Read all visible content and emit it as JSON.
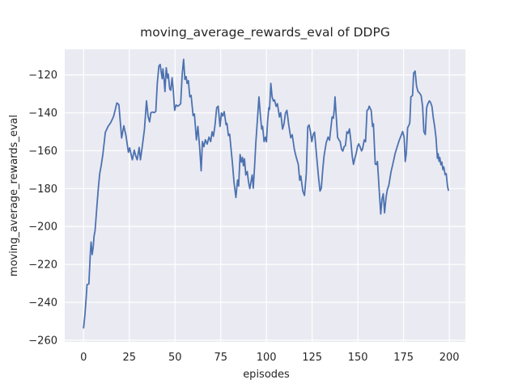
{
  "colors": {
    "line": "#4c72b0",
    "plot_background": "#eaeaf2",
    "grid": "#ffffff",
    "text": "#262626",
    "figure_background": "#ffffff"
  },
  "chart_data": {
    "type": "line",
    "title": "moving_average_rewards_eval of DDPG",
    "xlabel": "episodes",
    "ylabel": "moving_average_rewards_eval",
    "x_ticks": [
      0,
      25,
      50,
      75,
      100,
      125,
      150,
      175,
      200
    ],
    "x_tick_labels": [
      "0",
      "25",
      "50",
      "75",
      "100",
      "125",
      "150",
      "175",
      "200"
    ],
    "y_ticks": [
      -120,
      -140,
      -160,
      -180,
      -200,
      -220,
      -240,
      -260
    ],
    "y_tick_labels": [
      "−120",
      "−140",
      "−160",
      "−180",
      "−200",
      "−220",
      "−240",
      "−260"
    ],
    "xlim": [
      -10.3,
      208.8
    ],
    "ylim": [
      -260.9,
      -106.5
    ],
    "grid": true,
    "legend": false,
    "series": [
      {
        "name": "moving_average_rewards_eval",
        "color": "#4c72b0",
        "x": [
          0,
          0.7,
          1.4,
          1.9,
          2.9,
          3.3,
          3.7,
          4.1,
          4.7,
          5.3,
          5.7,
          6.3,
          7,
          8,
          8.8,
          9.6,
          10.6,
          11.9,
          13.4,
          14.9,
          16.4,
          17.3,
          18.2,
          19.3,
          20.1,
          20.8,
          22,
          23.2,
          24.5,
          25.2,
          26,
          26.7,
          27.7,
          28.6,
          29.3,
          30.4,
          31.1,
          32.2,
          33.3,
          34.4,
          35.3,
          36.1,
          36.8,
          37.7,
          38.8,
          39.5,
          40.3,
          41.2,
          41.9,
          42.5,
          43,
          43.4,
          44,
          44.5,
          45.2,
          45.9,
          46.3,
          47.1,
          47.7,
          48.4,
          49.1,
          49.8,
          50.6,
          51.6,
          52.5,
          53.1,
          53.9,
          54.7,
          55.4,
          56.1,
          56.6,
          57.3,
          58.1,
          58.8,
          59.9,
          60.6,
          61.7,
          62.5,
          63.5,
          64.3,
          65,
          65.8,
          66.6,
          67.6,
          68.6,
          69.5,
          70.3,
          71,
          71.8,
          72.8,
          73.6,
          74.6,
          75.4,
          76.1,
          76.9,
          77.9,
          78.4,
          79.2,
          79.9,
          80.6,
          81.4,
          82.2,
          83.3,
          84.2,
          84.8,
          85.6,
          86.3,
          86.9,
          87.4,
          88,
          88.7,
          89.5,
          90.2,
          90.9,
          91.7,
          92.2,
          92.8,
          93.5,
          94.2,
          95,
          95.9,
          96.7,
          97.4,
          97.9,
          98.7,
          99.4,
          100,
          100.6,
          101.3,
          101.7,
          102.4,
          103.1,
          103.8,
          104.4,
          105.3,
          106,
          107.1,
          107.8,
          108.8,
          109.6,
          110.4,
          111.2,
          112.2,
          113.3,
          114.1,
          115.3,
          116.3,
          117.4,
          118.2,
          118.8,
          119.9,
          120.8,
          121.8,
          122.6,
          123.3,
          124.1,
          124.8,
          125.6,
          126.3,
          127.7,
          128.5,
          129.3,
          130,
          130.8,
          131.5,
          132.7,
          133.7,
          134.5,
          135.9,
          136.6,
          137.1,
          137.5,
          138.2,
          138.9,
          139.6,
          140.3,
          141.1,
          141.8,
          142.5,
          143.2,
          144,
          144.7,
          145.4,
          146.1,
          146.9,
          147.6,
          148.3,
          149.1,
          149.8,
          150.5,
          151.2,
          152,
          152.5,
          153.5,
          154.2,
          155,
          155.7,
          156.2,
          157.3,
          158,
          158.5,
          159.5,
          160.2,
          160.7,
          161.7,
          162.5,
          163.2,
          163.9,
          164.6,
          165.4,
          166.1,
          166.9,
          168.1,
          169.1,
          170.4,
          171.5,
          172.7,
          173.9,
          174.5,
          175.3,
          175.9,
          176.5,
          177.2,
          178,
          178.4,
          179,
          179.9,
          180.5,
          181.3,
          182.1,
          182.9,
          183.6,
          184.6,
          185.4,
          186.1,
          186.9,
          187.6,
          188.3,
          189.1,
          189.8,
          190.5,
          191.3,
          192,
          192.7,
          193.5,
          193.9,
          194.4,
          194.8,
          195.4,
          195.9,
          196.5,
          197,
          197.7,
          198.3,
          199,
          199.5
        ],
        "y": [
          -253.5,
          -247,
          -238,
          -230.6,
          -230.3,
          -222,
          -214,
          -208.2,
          -214.8,
          -210.5,
          -205.3,
          -202,
          -193,
          -180.5,
          -172.3,
          -168,
          -161.5,
          -150.3,
          -147.2,
          -145.1,
          -141.9,
          -138.5,
          -134.8,
          -135.7,
          -145,
          -153.3,
          -146.8,
          -152.2,
          -160.8,
          -158.5,
          -162,
          -164.8,
          -159.7,
          -163,
          -164.8,
          -158.3,
          -164.8,
          -157,
          -148.6,
          -133.7,
          -142,
          -144.8,
          -140,
          -139.6,
          -139.9,
          -139.2,
          -124.5,
          -115.3,
          -114.5,
          -118.9,
          -122,
          -116.8,
          -122.4,
          -128.8,
          -116.2,
          -121.7,
          -119.6,
          -127.4,
          -128.1,
          -121.5,
          -128.8,
          -138.7,
          -135.9,
          -136.5,
          -135.8,
          -135.2,
          -120,
          -111.8,
          -122.4,
          -120.9,
          -124.5,
          -123,
          -131.6,
          -130.8,
          -141.5,
          -140.6,
          -154.3,
          -147.2,
          -158.6,
          -170.6,
          -155.2,
          -157.9,
          -154.2,
          -156.5,
          -152.8,
          -155.2,
          -150,
          -152.4,
          -147.2,
          -137.3,
          -136.5,
          -147.2,
          -140.1,
          -141.7,
          -139.4,
          -146.3,
          -145.6,
          -152,
          -151.3,
          -158.6,
          -166.5,
          -176,
          -184.7,
          -175.5,
          -178.6,
          -162,
          -166,
          -163.5,
          -168,
          -164.3,
          -172.8,
          -171,
          -176.5,
          -180,
          -175.6,
          -172.8,
          -179.8,
          -168.5,
          -155.8,
          -144.5,
          -131.6,
          -141.5,
          -148.6,
          -147.1,
          -155.2,
          -152.9,
          -155.3,
          -145,
          -137.3,
          -138.2,
          -124.5,
          -131.6,
          -133.8,
          -133.2,
          -136.6,
          -135.2,
          -142.2,
          -140,
          -148.6,
          -145.8,
          -140.1,
          -138.7,
          -146.5,
          -153.2,
          -151.6,
          -159.5,
          -163.5,
          -167.1,
          -175.6,
          -173.4,
          -181.3,
          -183.6,
          -172,
          -147.5,
          -146.4,
          -150.2,
          -155.2,
          -151.3,
          -150.2,
          -165.7,
          -174.2,
          -181.3,
          -179.8,
          -169.9,
          -162.8,
          -155.7,
          -152.8,
          -154.5,
          -142.2,
          -142.9,
          -138,
          -131.6,
          -142.2,
          -152.9,
          -154.2,
          -155.2,
          -159.3,
          -160.2,
          -157.8,
          -157.3,
          -150,
          -150.8,
          -148.5,
          -154.3,
          -162.8,
          -167.2,
          -164.2,
          -161.4,
          -157.8,
          -156.4,
          -158,
          -160.1,
          -159.3,
          -154.3,
          -155.3,
          -138.8,
          -138.1,
          -136.5,
          -138.8,
          -147.2,
          -145.8,
          -167.1,
          -167.3,
          -165.7,
          -181.3,
          -193.4,
          -185.5,
          -182.7,
          -192.8,
          -184.8,
          -180.6,
          -178.4,
          -171.3,
          -167.1,
          -161.4,
          -157.9,
          -154.3,
          -151.4,
          -149.9,
          -152.9,
          -165.7,
          -161.4,
          -147.9,
          -146.4,
          -145.1,
          -131.6,
          -130.9,
          -119,
          -118,
          -126,
          -128.8,
          -129.4,
          -130.9,
          -136.6,
          -150,
          -151.5,
          -137.3,
          -135.2,
          -133.7,
          -134.6,
          -136.6,
          -143,
          -147.2,
          -152.9,
          -164,
          -161.6,
          -165.6,
          -163.6,
          -167.4,
          -166,
          -170,
          -168.6,
          -172.6,
          -172.1,
          -178.5,
          -180.9
        ]
      }
    ]
  }
}
